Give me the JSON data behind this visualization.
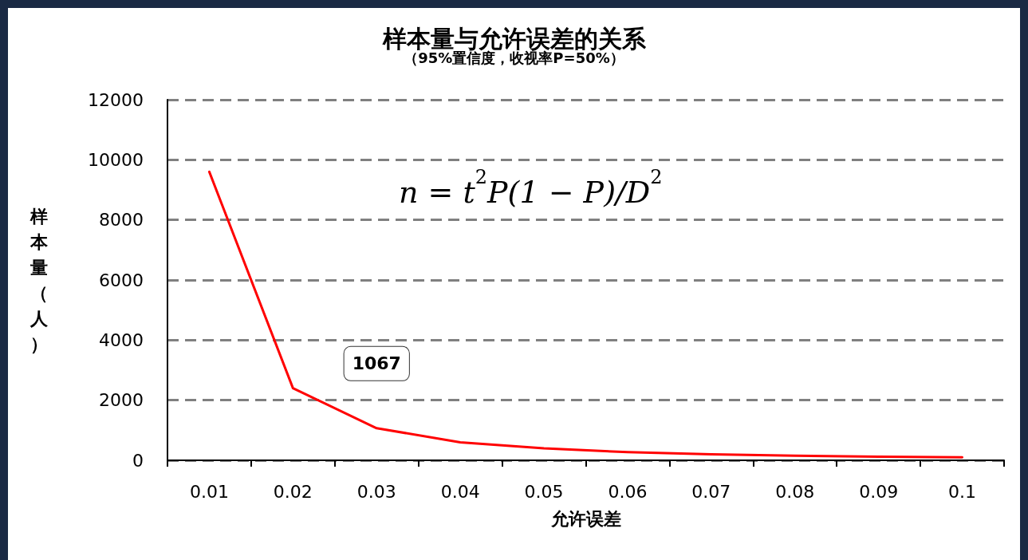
{
  "chart_data": {
    "type": "line",
    "title": "样本量与允许误差的关系",
    "subtitle": "（95%置信度，收视率P=50%）",
    "xlabel": "允许误差",
    "ylabel": "样本量（人）",
    "categories": [
      "0.01",
      "0.02",
      "0.03",
      "0.04",
      "0.05",
      "0.06",
      "0.07",
      "0.08",
      "0.09",
      "0.1"
    ],
    "series": [
      {
        "color": "#ff0000",
        "values": [
          9600,
          2400,
          1067,
          600,
          400,
          270,
          200,
          150,
          120,
          100
        ],
        "value_labels": [
          null,
          null,
          "1067",
          null,
          null,
          null,
          null,
          null,
          null,
          null
        ]
      }
    ],
    "ylim": [
      0,
      12000
    ],
    "yticks": [
      0,
      2000,
      4000,
      6000,
      8000,
      10000,
      12000
    ],
    "grid": "y",
    "marker": "none",
    "line_style": "solid",
    "annotations": [
      "n = t$^{2}$P(1 − P)/D$^{2}$"
    ]
  }
}
